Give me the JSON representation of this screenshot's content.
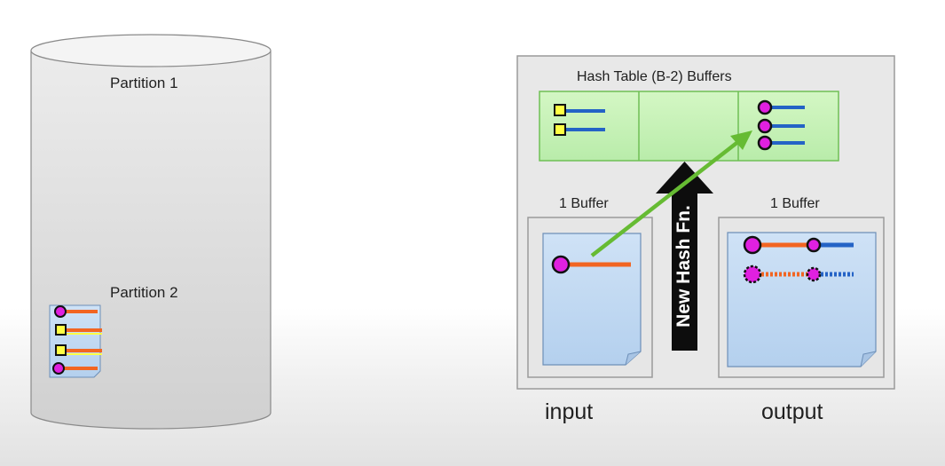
{
  "disk": {
    "partition1_label": "Partition 1",
    "partition2_label": "Partition 2",
    "page_records": [
      {
        "marker": "magenta-circle",
        "bar": "orange"
      },
      {
        "marker": "yellow-square",
        "bar": "orange"
      },
      {
        "marker": "yellow-square",
        "bar": "orange"
      },
      {
        "marker": "magenta-circle",
        "bar": "orange"
      }
    ]
  },
  "memory": {
    "hash_table_label": "Hash Table (B-2) Buffers",
    "input_buffer_label": "1 Buffer",
    "output_buffer_label": "1 Buffer",
    "hash_arrow_label": "New Hash Fn.",
    "input_label": "input",
    "output_label": "output"
  },
  "colors": {
    "magenta": "#e020e0",
    "yellow": "#ffff44",
    "orange": "#f26522",
    "blue": "#2463c6",
    "green_buffer": "#c8f2b6",
    "green_arrow": "#66bb33",
    "page_blue": "#c8def4"
  }
}
